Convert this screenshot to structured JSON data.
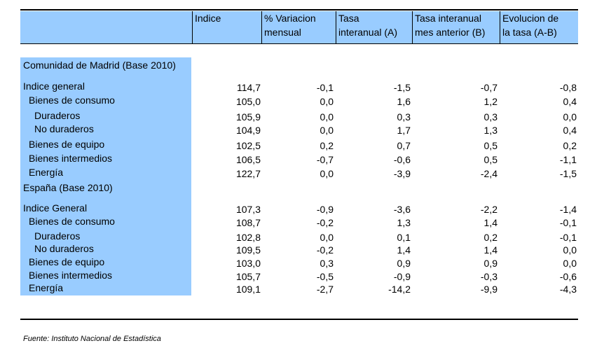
{
  "header": {
    "col0": "",
    "col1": "Indice",
    "col2_l1": "% Variacion",
    "col2_l2": "mensual",
    "col3_l1": "Tasa",
    "col3_l2": "interanual (A)",
    "col4_l1": "Tasa interanual",
    "col4_l2": "mes anterior (B)",
    "col5_l1": "Evolucion de",
    "col5_l2": "la tasa (A-B)"
  },
  "madrid": {
    "title": "Comunidad de Madrid (Base 2010)",
    "rows": [
      {
        "label": "Indice general",
        "v": [
          "114,7",
          "-0,1",
          "-1,5",
          "-0,7",
          "-0,8"
        ]
      },
      {
        "label": "Bienes de consumo",
        "v": [
          "105,0",
          "0,0",
          "1,6",
          "1,2",
          "0,4"
        ]
      },
      {
        "label": "Duraderos",
        "v": [
          "105,9",
          "0,0",
          "0,3",
          "0,3",
          "0,0"
        ]
      },
      {
        "label": "No duraderos",
        "v": [
          "104,9",
          "0,0",
          "1,7",
          "1,3",
          "0,4"
        ]
      },
      {
        "label": "Bienes de equipo",
        "v": [
          "102,5",
          "0,2",
          "0,7",
          "0,5",
          "0,2"
        ]
      },
      {
        "label": "Bienes intermedios",
        "v": [
          "106,5",
          "-0,7",
          "-0,6",
          "0,5",
          "-1,1"
        ]
      },
      {
        "label": "Energía",
        "v": [
          "122,7",
          "0,0",
          "-3,9",
          "-2,4",
          "-1,5"
        ]
      }
    ]
  },
  "spain": {
    "title": "España (Base 2010)",
    "rows": [
      {
        "label": "Indice General",
        "v": [
          "107,3",
          "-0,9",
          "-3,6",
          "-2,2",
          "-1,4"
        ]
      },
      {
        "label": "Bienes de consumo",
        "v": [
          "108,7",
          "-0,2",
          "1,3",
          "1,4",
          "-0,1"
        ]
      },
      {
        "label": "Duraderos",
        "v": [
          "102,8",
          "0,0",
          "0,1",
          "0,2",
          "-0,1"
        ]
      },
      {
        "label": "No duraderos",
        "v": [
          "109,5",
          "-0,2",
          "1,4",
          "1,4",
          "0,0"
        ]
      },
      {
        "label": "Bienes de equipo",
        "v": [
          "103,0",
          "0,3",
          "0,9",
          "0,9",
          "0,0"
        ]
      },
      {
        "label": "Bienes intermedios",
        "v": [
          "105,7",
          "-0,5",
          "-0,9",
          "-0,3",
          "-0,6"
        ]
      },
      {
        "label": "Energía",
        "v": [
          "109,1",
          "-2,7",
          "-14,2",
          "-9,9",
          "-4,3"
        ]
      }
    ]
  },
  "source": "Fuente: Instituto Nacional de Estadística"
}
